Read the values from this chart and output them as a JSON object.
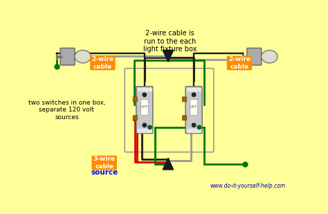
{
  "bg_color": "#FFFF99",
  "title_text": "2-wire cable is\nrun to the each\nlight fixture box",
  "label_left": "two switches in one box,\nseparate 120 volt\nsources",
  "url_text": "www.do-it-yourself-help.com",
  "orange_color": "#FF8C00",
  "wire_black": "#1a1a1a",
  "wire_red": "#DD0000",
  "wire_green": "#007700",
  "wire_gray": "#999999",
  "wire_white": "#CCCCCC",
  "switch_body": "#C8C8C8",
  "fixture_box": "#AAAAAA",
  "fixture_lamp": "#DDDDCC",
  "brown_screw": "#996600"
}
